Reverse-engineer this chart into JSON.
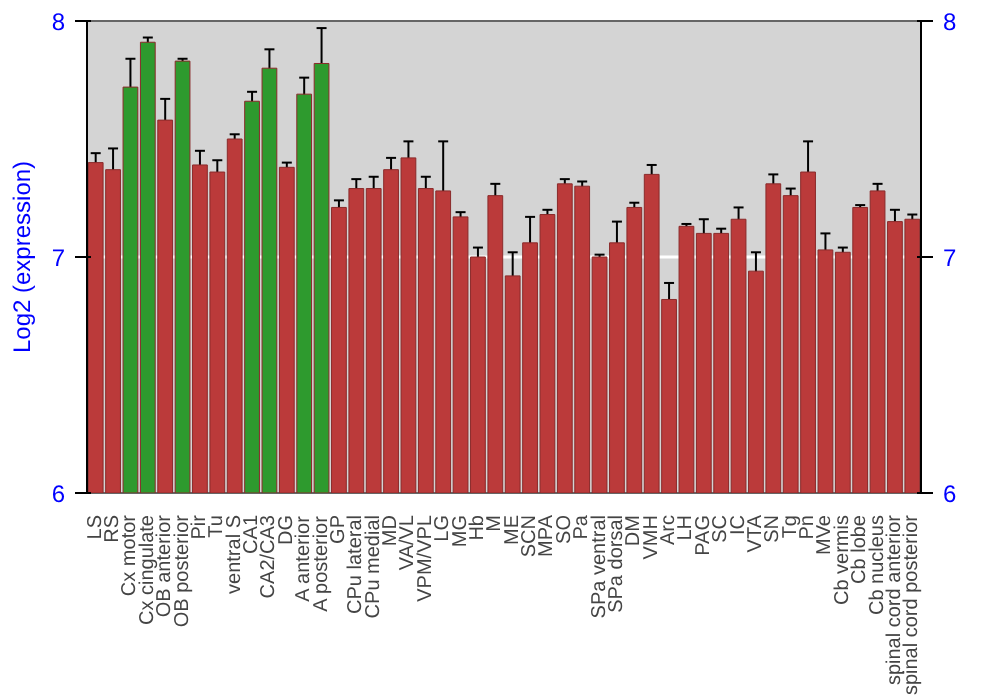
{
  "chart_data": {
    "type": "bar",
    "ylabel": "Log2 (expression)",
    "categories": [
      "LS",
      "RS",
      "Cx motor",
      "Cx cingulate",
      "OB anterior",
      "OB posterior",
      "Pir",
      "Tu",
      "ventral S",
      "CA1",
      "CA2/CA3",
      "DG",
      "A anterior",
      "A posterior",
      "GP",
      "CPu lateral",
      "CPu medial",
      "MD",
      "VA/VL",
      "VPM/VPL",
      "LG",
      "MG",
      "Hb",
      "M",
      "ME",
      "SCN",
      "MPA",
      "SO",
      "Pa",
      "SPa ventral",
      "SPa dorsal",
      "DM",
      "VMH",
      "Arc",
      "LH",
      "PAG",
      "SC",
      "IC",
      "VTA",
      "SN",
      "Tg",
      "Pn",
      "MVe",
      "Cb vermis",
      "Cb lobe",
      "Cb nucleus",
      "spinal cord anterior",
      "spinal cord posterior"
    ],
    "values": [
      7.4,
      7.37,
      7.72,
      7.91,
      7.58,
      7.83,
      7.39,
      7.36,
      7.5,
      7.66,
      7.8,
      7.38,
      7.69,
      7.82,
      7.21,
      7.29,
      7.29,
      7.37,
      7.42,
      7.29,
      7.28,
      7.17,
      7.0,
      7.26,
      6.92,
      7.06,
      7.18,
      7.31,
      7.3,
      7.0,
      7.06,
      7.21,
      7.35,
      6.82,
      7.13,
      7.1,
      7.1,
      7.16,
      6.94,
      7.31,
      7.26,
      7.36,
      7.03,
      7.02,
      7.21,
      7.28,
      7.15,
      7.16
    ],
    "errors": [
      0.04,
      0.09,
      0.12,
      0.02,
      0.09,
      0.01,
      0.06,
      0.05,
      0.02,
      0.04,
      0.08,
      0.02,
      0.07,
      0.15,
      0.03,
      0.04,
      0.05,
      0.05,
      0.07,
      0.05,
      0.21,
      0.02,
      0.04,
      0.05,
      0.1,
      0.11,
      0.02,
      0.02,
      0.02,
      0.01,
      0.09,
      0.02,
      0.04,
      0.07,
      0.01,
      0.06,
      0.02,
      0.05,
      0.08,
      0.04,
      0.03,
      0.13,
      0.07,
      0.02,
      0.01,
      0.03,
      0.05,
      0.02
    ],
    "colors": [
      "#bb3a3a",
      "#bb3a3a",
      "#2e9a2e",
      "#2e9a2e",
      "#bb3a3a",
      "#2e9a2e",
      "#bb3a3a",
      "#bb3a3a",
      "#bb3a3a",
      "#2e9a2e",
      "#2e9a2e",
      "#bb3a3a",
      "#2e9a2e",
      "#2e9a2e",
      "#bb3a3a",
      "#bb3a3a",
      "#bb3a3a",
      "#bb3a3a",
      "#bb3a3a",
      "#bb3a3a",
      "#bb3a3a",
      "#bb3a3a",
      "#bb3a3a",
      "#bb3a3a",
      "#bb3a3a",
      "#bb3a3a",
      "#bb3a3a",
      "#bb3a3a",
      "#bb3a3a",
      "#bb3a3a",
      "#bb3a3a",
      "#bb3a3a",
      "#bb3a3a",
      "#bb3a3a",
      "#bb3a3a",
      "#bb3a3a",
      "#bb3a3a",
      "#bb3a3a",
      "#bb3a3a",
      "#bb3a3a",
      "#bb3a3a",
      "#bb3a3a",
      "#bb3a3a",
      "#bb3a3a",
      "#bb3a3a",
      "#bb3a3a",
      "#bb3a3a",
      "#bb3a3a"
    ],
    "ylim": [
      6,
      8
    ],
    "yticks": [
      6,
      7,
      8
    ],
    "y2lim": [
      6,
      8
    ],
    "y2ticks": [
      6,
      7,
      8
    ],
    "grid": "y"
  }
}
